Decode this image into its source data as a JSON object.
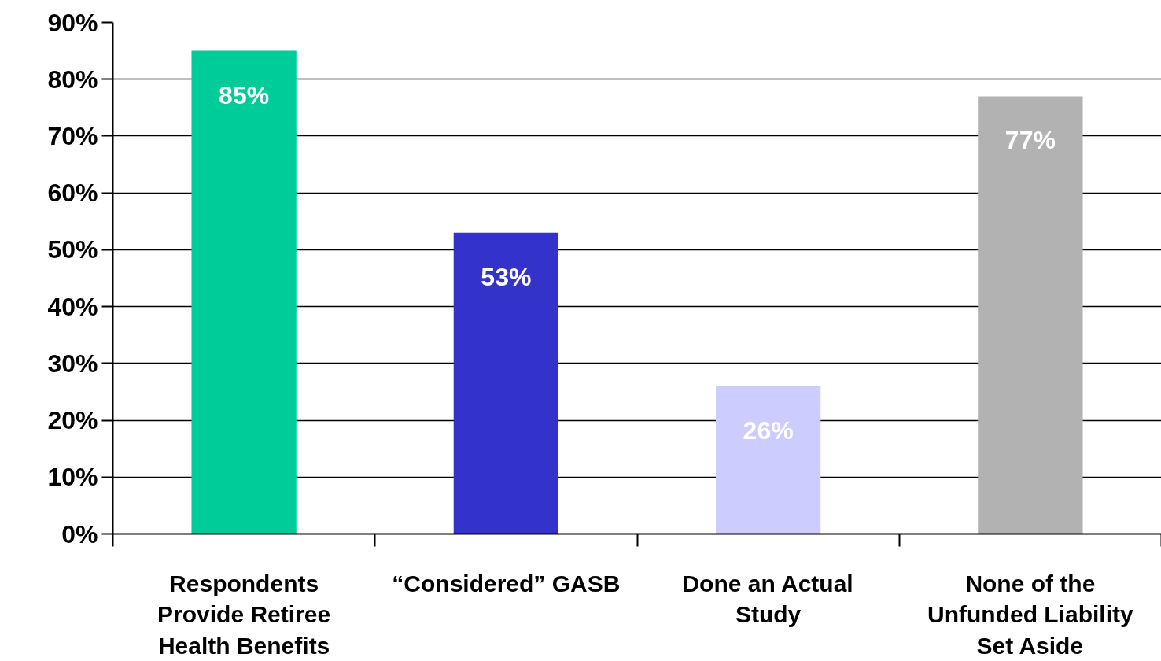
{
  "chart_data": {
    "type": "bar",
    "categories": [
      "Respondents Provide Retiree Health Benefits",
      "“Considered” GASB",
      "Done an Actual Study",
      "None of the Unfunded Liability Set Aside"
    ],
    "values": [
      85,
      53,
      26,
      77
    ],
    "colors": [
      "#00cc99",
      "#3333cc",
      "#ccccff",
      "#b2b2b2"
    ],
    "value_labels": [
      "85%",
      "53%",
      "26%",
      "77%"
    ],
    "ylim": [
      0,
      90
    ],
    "yticks": [
      {
        "value": 0,
        "label": "0%"
      },
      {
        "value": 10,
        "label": "10%"
      },
      {
        "value": 20,
        "label": "20%"
      },
      {
        "value": 30,
        "label": "30%"
      },
      {
        "value": 40,
        "label": "40%"
      },
      {
        "value": 50,
        "label": "50%"
      },
      {
        "value": 60,
        "label": "60%"
      },
      {
        "value": 70,
        "label": "70%"
      },
      {
        "value": 80,
        "label": "80%"
      },
      {
        "value": 90,
        "label": "90%"
      }
    ],
    "grid": "y"
  }
}
